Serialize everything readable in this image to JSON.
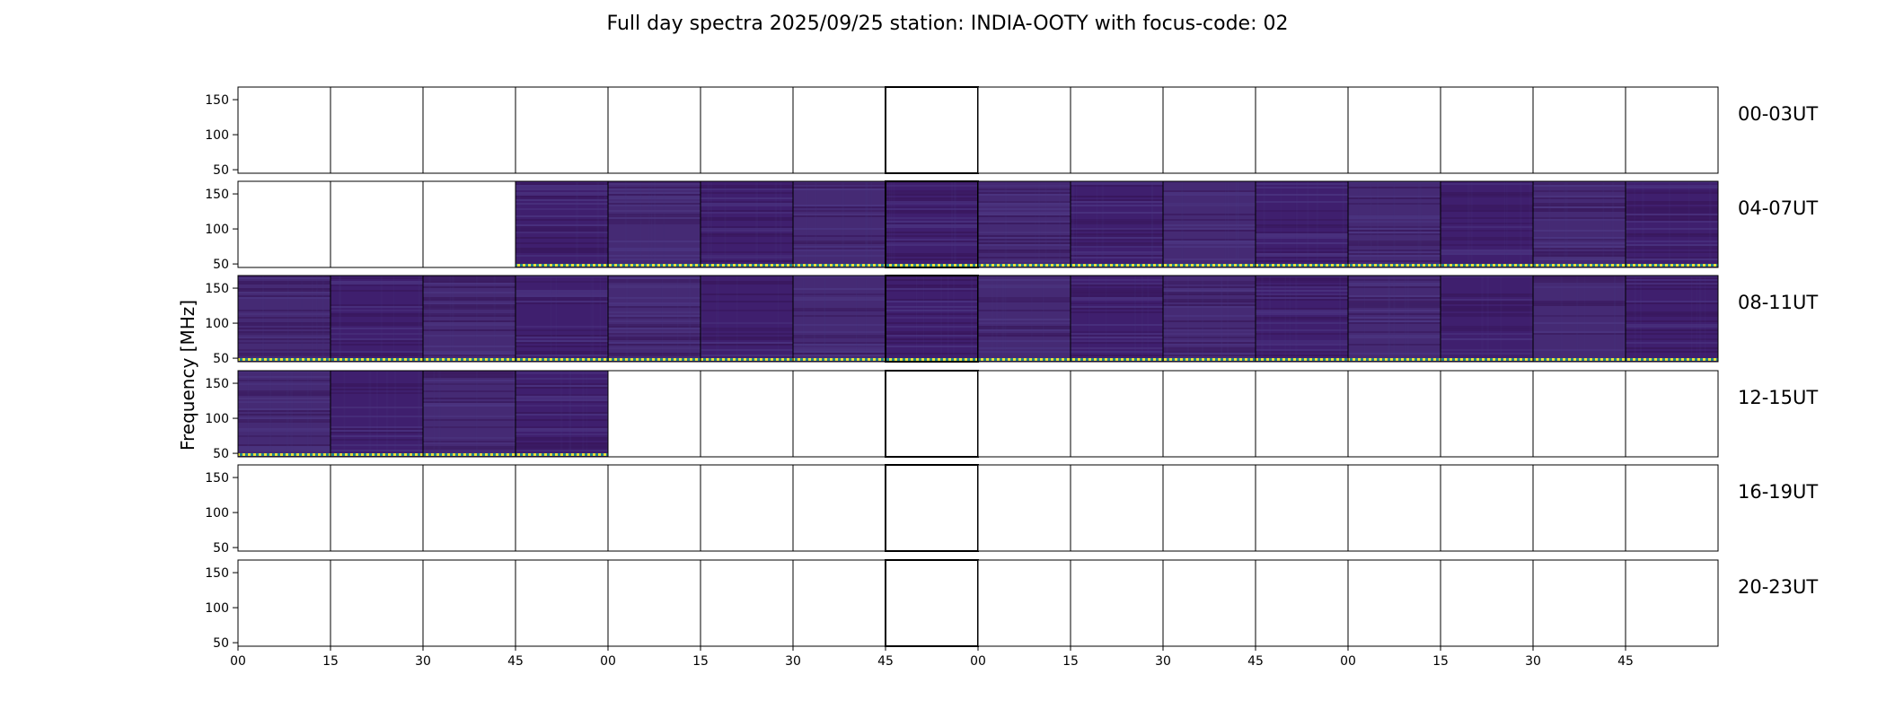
{
  "chart_data": {
    "type": "heatmap",
    "title": "Full day spectra 2025/09/25 station: INDIA-OOTY with focus-code: 02",
    "ylabel": "Frequency [MHz]",
    "xlabel": "",
    "ylim": [
      45,
      168
    ],
    "yticks": [
      50,
      100,
      150
    ],
    "xticks": [
      "00",
      "15",
      "30",
      "45",
      "00",
      "15",
      "30",
      "45",
      "00",
      "15",
      "30",
      "45",
      "00",
      "15",
      "30",
      "45"
    ],
    "segment_minutes": 15,
    "rows": [
      {
        "label": "00-03UT",
        "start_hour": 0,
        "data_panels": []
      },
      {
        "label": "04-07UT",
        "start_hour": 4,
        "data_panels": [
          3,
          4,
          5,
          6,
          7,
          8,
          9,
          10,
          11,
          12,
          13,
          14,
          15
        ]
      },
      {
        "label": "08-11UT",
        "start_hour": 8,
        "data_panels": [
          0,
          1,
          2,
          3,
          4,
          5,
          6,
          7,
          8,
          9,
          10,
          11,
          12,
          13,
          14,
          15
        ]
      },
      {
        "label": "12-15UT",
        "start_hour": 12,
        "data_panels": [
          0,
          1,
          2,
          3
        ]
      },
      {
        "label": "16-19UT",
        "start_hour": 16,
        "data_panels": []
      },
      {
        "label": "20-23UT",
        "start_hour": 20,
        "data_panels": []
      }
    ],
    "colors": {
      "background": "#3f1f6e",
      "background_alt": "#452a74",
      "band_dark": "#361456",
      "band_light": "#4e3a86",
      "bottom_stripe_a": "#e8e13a",
      "bottom_stripe_b": "#24878a",
      "axis": "#000000"
    },
    "grid": false
  }
}
